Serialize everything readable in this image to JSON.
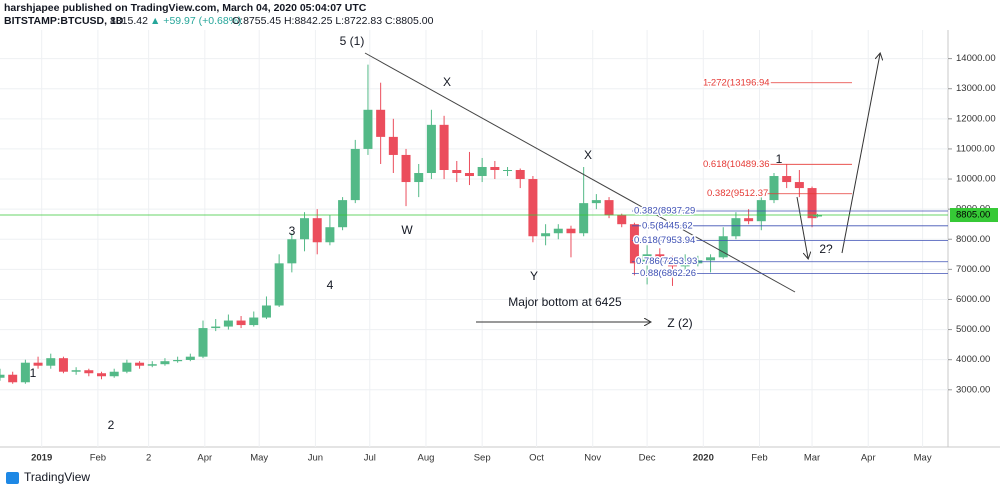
{
  "header": {
    "publisher": "harshjapee published on TradingView.com, March 04, 2020 05:04:07 UTC",
    "symbol": "BITSTAMP:BTCUSD, 1D",
    "price": "8815.42",
    "change": "▲ +59.97 (+0.68%)",
    "ohlc": "O:8755.45 H:8842.25 L:8722.83 C:8805.00"
  },
  "footer": {
    "brand": "TradingView"
  },
  "chart_data": {
    "type": "candlestick",
    "x": [
      0,
      7,
      14,
      21,
      28,
      35,
      42,
      49,
      56,
      63,
      70,
      77,
      84,
      91,
      98,
      105,
      112,
      119,
      126,
      133,
      140,
      147,
      154,
      161,
      168,
      175,
      182,
      189,
      196,
      203,
      210,
      217,
      224,
      231,
      238,
      245,
      252,
      259,
      266,
      273,
      280,
      287,
      294,
      301,
      308,
      315,
      322,
      329,
      336,
      343,
      350,
      357,
      364,
      371,
      378,
      385,
      392,
      399,
      406,
      413,
      420,
      427,
      434,
      441,
      448,
      451
    ],
    "open": [
      3400,
      3500,
      3250,
      3900,
      3800,
      4050,
      3600,
      3650,
      3550,
      3450,
      3600,
      3900,
      3800,
      3850,
      3950,
      3990,
      4100,
      5050,
      5100,
      5300,
      5150,
      5400,
      5800,
      7200,
      8000,
      8700,
      7900,
      8400,
      9300,
      11000,
      12300,
      11400,
      10800,
      9900,
      10200,
      11800,
      10300,
      10200,
      10100,
      10400,
      10300,
      10300,
      10000,
      8100,
      8200,
      8350,
      8200,
      9200,
      9300,
      8800,
      8500,
      7200,
      7500,
      7400,
      7100,
      7200,
      7300,
      7400,
      8100,
      8700,
      8600,
      9300,
      10100,
      9900,
      9700,
      8755.45
    ],
    "high": [
      3700,
      3600,
      4000,
      4100,
      4200,
      4100,
      3750,
      3700,
      3600,
      3700,
      4000,
      3950,
      3950,
      4050,
      4100,
      4200,
      5300,
      5350,
      5500,
      5450,
      5600,
      6100,
      7500,
      8200,
      8900,
      9000,
      8800,
      9400,
      11300,
      13800,
      13200,
      12000,
      11000,
      10500,
      12300,
      12100,
      10600,
      10900,
      10700,
      10600,
      10400,
      10350,
      10100,
      8500,
      8500,
      8450,
      10400,
      9500,
      9400,
      8850,
      8550,
      7800,
      7700,
      7450,
      7500,
      7450,
      7500,
      8400,
      8900,
      9000,
      9600,
      10200,
      10500,
      10300,
      9750,
      8842.25
    ],
    "low": [
      3300,
      3200,
      3200,
      3700,
      3700,
      3550,
      3500,
      3450,
      3350,
      3400,
      3550,
      3700,
      3750,
      3800,
      3900,
      3950,
      4050,
      4950,
      5000,
      5050,
      5100,
      5350,
      5750,
      6900,
      7600,
      7500,
      7800,
      8300,
      9200,
      10800,
      10500,
      10200,
      9100,
      9400,
      10000,
      10000,
      9900,
      9800,
      9900,
      10000,
      10100,
      9700,
      7900,
      7800,
      8000,
      7400,
      8100,
      9000,
      8700,
      8400,
      6800,
      6500,
      7300,
      6450,
      6900,
      7100,
      6900,
      7350,
      8000,
      8500,
      8300,
      9200,
      9700,
      9400,
      8400,
      8722.83
    ],
    "close": [
      3500,
      3250,
      3900,
      3800,
      4050,
      3600,
      3650,
      3550,
      3450,
      3600,
      3900,
      3800,
      3850,
      3950,
      3990,
      4100,
      5050,
      5100,
      5300,
      5150,
      5400,
      5800,
      7200,
      8000,
      8700,
      7900,
      8400,
      9300,
      11000,
      12300,
      11400,
      10800,
      9900,
      10200,
      11800,
      10300,
      10200,
      10100,
      10400,
      10300,
      10300,
      10000,
      8100,
      8200,
      8350,
      8200,
      9200,
      9300,
      8800,
      8500,
      7200,
      7500,
      7400,
      7100,
      7200,
      7300,
      7400,
      8100,
      8700,
      8600,
      9300,
      10100,
      9900,
      9700,
      8700,
      8805
    ],
    "up_color": "#53b987",
    "down_color": "#eb4d5c",
    "xlim": [
      0,
      523
    ],
    "xticks": [
      {
        "value": 23,
        "label": "2019"
      },
      {
        "value": 54,
        "label": "Feb"
      },
      {
        "value": 82,
        "label": "2"
      },
      {
        "value": 113,
        "label": "Apr"
      },
      {
        "value": 143,
        "label": "May"
      },
      {
        "value": 174,
        "label": "Jun"
      },
      {
        "value": 204,
        "label": "Jul"
      },
      {
        "value": 235,
        "label": "Aug"
      },
      {
        "value": 266,
        "label": "Sep"
      },
      {
        "value": 296,
        "label": "Oct"
      },
      {
        "value": 327,
        "label": "Nov"
      },
      {
        "value": 357,
        "label": "Dec"
      },
      {
        "value": 388,
        "label": "2020"
      },
      {
        "value": 419,
        "label": "Feb"
      },
      {
        "value": 448,
        "label": "Mar"
      },
      {
        "value": 479,
        "label": "Apr"
      },
      {
        "value": 509,
        "label": "May"
      }
    ],
    "ylim": [
      1100,
      14950
    ],
    "yticks": [
      {
        "value": 3000,
        "label": "3000.00"
      },
      {
        "value": 4000,
        "label": "4000.00"
      },
      {
        "value": 5000,
        "label": "5000.00"
      },
      {
        "value": 6000,
        "label": "6000.00"
      },
      {
        "value": 7000,
        "label": "7000.00"
      },
      {
        "value": 8000,
        "label": "8000.00"
      },
      {
        "value": 9000,
        "label": "9000.00"
      },
      {
        "value": 10000,
        "label": "10000.00"
      },
      {
        "value": 11000,
        "label": "11000.00"
      },
      {
        "value": 12000,
        "label": "12000.00"
      },
      {
        "value": 13000,
        "label": "13000.00"
      },
      {
        "value": 14000,
        "label": "14000.00"
      }
    ],
    "grid": true,
    "last_price": {
      "value": 8805,
      "label": "8805.00"
    },
    "last_price_color": "#36c936",
    "fib_red": [
      {
        "value": 13196.94,
        "label": "1.272(13196.94"
      },
      {
        "value": 10489.36,
        "label": "0.618(10489.36"
      },
      {
        "value": 9512.37,
        "label": "0.382(9512.37"
      }
    ],
    "fib_blue": [
      {
        "value": 8937.29,
        "label": "0.382(8937.29"
      },
      {
        "value": 8445.62,
        "label": "0.5(8445.62"
      },
      {
        "value": 7953.94,
        "label": "0.618(7953.94"
      },
      {
        "value": 7253.93,
        "label": "0.786(7253.93"
      },
      {
        "value": 6862.26,
        "label": "0.88(6862.26"
      }
    ],
    "annotations": [
      "5 (1)",
      "X",
      "X",
      "1",
      "3",
      "W",
      "Y",
      "4",
      "2?",
      "1",
      "2",
      "Z (2)",
      "Major bottom at 6425"
    ]
  }
}
